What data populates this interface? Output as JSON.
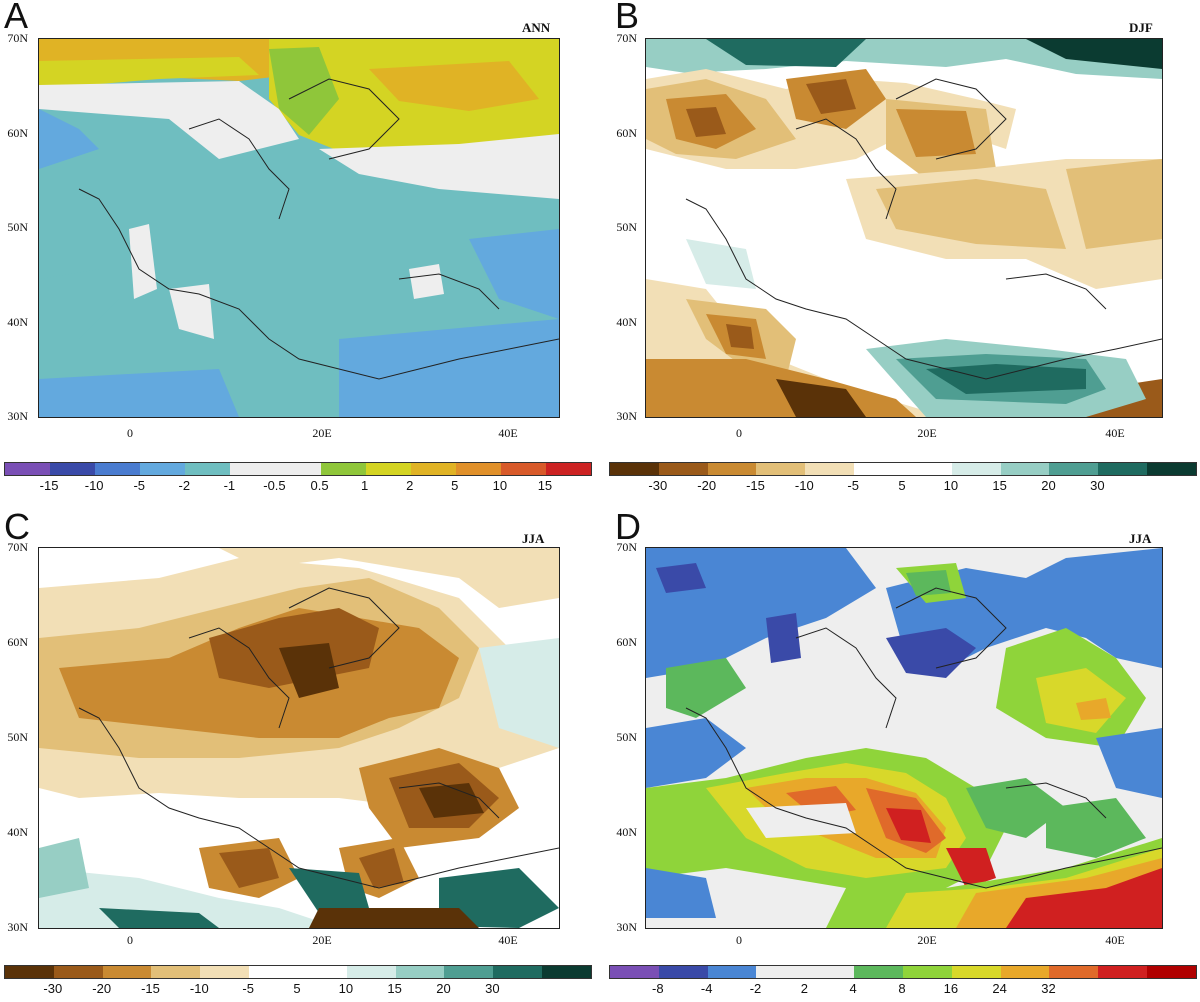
{
  "panels": {
    "a": {
      "letter": "A",
      "season": "ANN",
      "lat_labels": [
        "70N",
        "60N",
        "50N",
        "40N",
        "30N"
      ],
      "lon_labels": [
        "0",
        "20E",
        "40E"
      ],
      "colorbar": {
        "colors": [
          "#7a4fb5",
          "#3a4aa8",
          "#4a7cd0",
          "#63a9de",
          "#6fbec0",
          "#eeeeee",
          "#eeeeee",
          "#8fc63a",
          "#d4d423",
          "#e0b325",
          "#e0902a",
          "#d85a2a",
          "#cc2222"
        ],
        "labels": [
          "-15",
          "-10",
          "-5",
          "-2",
          "-1",
          "-0.5",
          "0.5",
          "1",
          "2",
          "5",
          "10",
          "15"
        ]
      }
    },
    "b": {
      "letter": "B",
      "season": "DJF",
      "lat_labels": [
        "70N",
        "60N",
        "50N",
        "40N",
        "30N"
      ],
      "lon_labels": [
        "0",
        "20E",
        "40E"
      ],
      "colorbar": {
        "colors": [
          "#5a3208",
          "#9a5a1a",
          "#c98a32",
          "#e2bf78",
          "#f2dfb6",
          "#ffffff",
          "#ffffff",
          "#d6ece8",
          "#97cec4",
          "#4f9e92",
          "#1f6b60",
          "#0b3b31"
        ],
        "labels": [
          "-30",
          "-20",
          "-15",
          "-10",
          "-5",
          "5",
          "10",
          "15",
          "20",
          "30"
        ]
      }
    },
    "c": {
      "letter": "C",
      "season": "JJA",
      "lat_labels": [
        "70N",
        "60N",
        "50N",
        "40N",
        "30N"
      ],
      "lon_labels": [
        "0",
        "20E",
        "40E"
      ],
      "colorbar": {
        "colors": [
          "#5a3208",
          "#9a5a1a",
          "#c98a32",
          "#e2bf78",
          "#f2dfb6",
          "#ffffff",
          "#ffffff",
          "#d6ece8",
          "#97cec4",
          "#4f9e92",
          "#1f6b60",
          "#0b3b31"
        ],
        "labels": [
          "-30",
          "-20",
          "-15",
          "-10",
          "-5",
          "5",
          "10",
          "15",
          "20",
          "30"
        ]
      }
    },
    "d": {
      "letter": "D",
      "season": "JJA",
      "lat_labels": [
        "70N",
        "60N",
        "50N",
        "40N",
        "30N"
      ],
      "lon_labels": [
        "0",
        "20E",
        "40E"
      ],
      "colorbar": {
        "colors": [
          "#7a4fb5",
          "#3a4aa8",
          "#4a86d4",
          "#eeeeee",
          "#eeeeee",
          "#5cb85c",
          "#8fd43a",
          "#d8d82a",
          "#e8a82a",
          "#e06a2a",
          "#d02020",
          "#b00000"
        ],
        "labels": [
          "-8",
          "-4",
          "-2",
          "2",
          "4",
          "8",
          "16",
          "24",
          "32"
        ]
      }
    }
  }
}
